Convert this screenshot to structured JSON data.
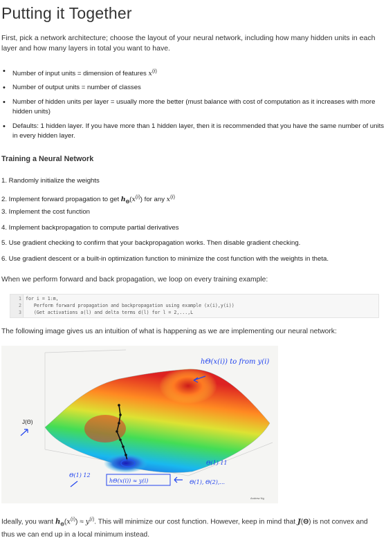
{
  "title": "Putting it Together",
  "intro": "First, pick a network architecture; choose the layout of your neural network, including how many hidden units in each layer and how many layers in total you want to have.",
  "bullets": [
    "Number of input units = dimension of features x(i)",
    "Number of output units = number of classes",
    "Number of hidden units per layer = usually more the better (must balance with cost of computation as it increases with more hidden units)",
    "Defaults: 1 hidden layer. If you have more than 1 hidden layer, then it is recommended that you have the same number of units in every hidden layer."
  ],
  "training_heading": "Training a Neural Network",
  "steps": [
    "1. Randomly initialize the weights",
    "2. Implement forward propagation to get hΘ(x(i)) for any x(i)",
    "3. Implement the cost function",
    "4. Implement backpropagation to compute partial derivatives",
    "5. Use gradient checking to confirm that your backpropagation works. Then disable gradient checking.",
    "6. Use gradient descent or a built-in optimization function to minimize the cost function with the weights in theta."
  ],
  "loop_sentence": "When we perform forward and back propagation, we loop on every training example:",
  "code": [
    {
      "n": "1",
      "t": "for i = 1:m,"
    },
    {
      "n": "2",
      "t": "   Perform forward propagation and backpropagation using example (x(i),y(i))"
    },
    {
      "n": "3",
      "t": "   (Get activations a(l) and delta terms d(l) for l = 2,...,L"
    }
  ],
  "image_sentence": "The following image gives us an intuition of what is happening as we are implementing our neural network:",
  "figure": {
    "j_label": "J(Θ)",
    "top_note": "hΘ(x(i)) to from y(i)",
    "bottom_note": "hΘ(x(i)) ≈ y(i)",
    "theta12": "Θ(1) 12",
    "theta11": "Θ(1) 11",
    "thetas": "Θ(1), Θ(2),...",
    "credit": "Andrew Ng"
  },
  "final": "Ideally, you want hΘ(x(i)) ≈ y(i). This will minimize our cost function. However, keep in mind that J(Θ) is not convex and thus we can end up in a local minimum instead."
}
